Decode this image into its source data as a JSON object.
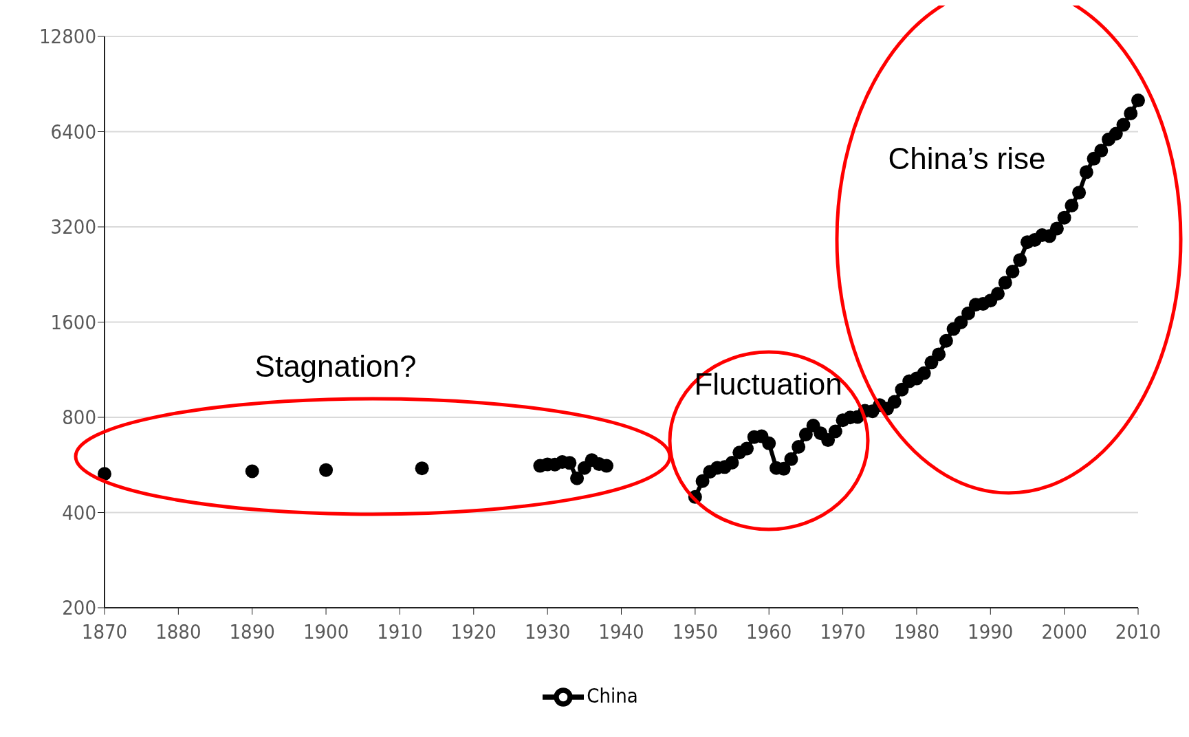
{
  "chart_data": {
    "type": "line",
    "x": [
      1870,
      1880,
      1890,
      1895,
      1900,
      1906,
      1913,
      1920,
      1929,
      1930,
      1931,
      1932,
      1933,
      1934,
      1935,
      1936,
      1937,
      1938,
      1944,
      1950,
      1951,
      1952,
      1953,
      1954,
      1955,
      1956,
      1957,
      1958,
      1959,
      1960,
      1961,
      1962,
      1963,
      1964,
      1965,
      1966,
      1967,
      1968,
      1969,
      1970,
      1971,
      1972,
      1973,
      1974,
      1975,
      1976,
      1977,
      1978,
      1979,
      1980,
      1981,
      1982,
      1983,
      1984,
      1985,
      1986,
      1987,
      1988,
      1989,
      1990,
      1991,
      1992,
      1993,
      1994,
      1995,
      1996,
      1997,
      1998,
      1999,
      2000,
      2001,
      2002,
      2003,
      2004,
      2005,
      2006,
      2007,
      2008,
      2009,
      2010
    ],
    "series": [
      {
        "name": "China",
        "color": "#000000",
        "values": [
          530,
          null,
          540,
          null,
          545,
          null,
          552,
          null,
          562,
          568,
          567,
          578,
          574,
          513,
          553,
          586,
          569,
          562,
          null,
          448,
          503,
          538,
          554,
          557,
          575,
          619,
          637,
          693,
          697,
          662,
          553,
          550,
          590,
          645,
          706,
          753,
          712,
          678,
          722,
          783,
          799,
          802,
          839,
          836,
          874,
          852,
          895,
          979,
          1040,
          1061,
          1103,
          1192,
          1265,
          1396,
          1522,
          1597,
          1706,
          1816,
          1827,
          1871,
          1967,
          2132,
          2312,
          2515,
          2863,
          2909,
          3013,
          2993,
          3162,
          3421,
          3737,
          4106,
          4767,
          5257,
          5575,
          6048,
          6303,
          6725,
          7308,
          8032
        ]
      }
    ],
    "xlim": [
      1870,
      2010
    ],
    "xticks": [
      1870,
      1880,
      1890,
      1900,
      1910,
      1920,
      1930,
      1940,
      1950,
      1960,
      1970,
      1980,
      1990,
      2000,
      2010
    ],
    "ylim": [
      200,
      12800
    ],
    "yticks": [
      200,
      400,
      800,
      1600,
      3200,
      6400,
      12800
    ],
    "log": "y",
    "grid": "y",
    "legend": "bottom",
    "marker": "circle",
    "line_style": "solid",
    "annotations": [
      "Stagnation?",
      "Fluctuation",
      "China’s rise"
    ]
  }
}
